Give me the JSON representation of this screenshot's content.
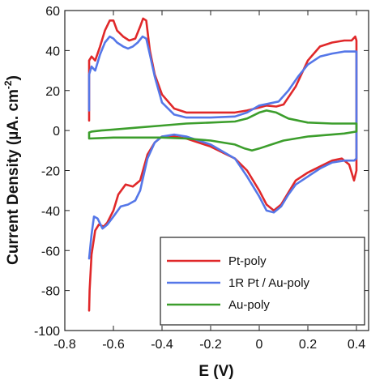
{
  "chart_data": {
    "type": "line",
    "xlabel": "E (V)",
    "ylabel_main": "Current Density (µA. cm",
    "ylabel_sup": "-2",
    "ylabel_tail": ")",
    "xlim": [
      -0.8,
      0.45
    ],
    "ylim": [
      -100,
      60
    ],
    "x_ticks": [
      -0.8,
      -0.6,
      -0.4,
      -0.2,
      0,
      0.2,
      0.4
    ],
    "x_tick_labels": [
      "-0.8",
      "-0.6",
      "-0.4",
      "-0.2",
      "0",
      "0.2",
      "0.4"
    ],
    "y_ticks": [
      -100,
      -80,
      -60,
      -40,
      -20,
      0,
      20,
      40,
      60
    ],
    "y_tick_labels": [
      "-100",
      "-80",
      "-60",
      "-40",
      "-20",
      "0",
      "20",
      "40",
      "60"
    ],
    "grid": false,
    "legend_position": "bottom-right",
    "series": [
      {
        "name": "Pt-poly",
        "color": "#e0282a",
        "points": [
          [
            -0.7,
            5
          ],
          [
            -0.7,
            35
          ],
          [
            -0.69,
            37
          ],
          [
            -0.675,
            35
          ],
          [
            -0.655,
            42
          ],
          [
            -0.635,
            50
          ],
          [
            -0.615,
            55
          ],
          [
            -0.6,
            55
          ],
          [
            -0.585,
            50
          ],
          [
            -0.56,
            47
          ],
          [
            -0.535,
            45
          ],
          [
            -0.51,
            46
          ],
          [
            -0.49,
            52
          ],
          [
            -0.478,
            56
          ],
          [
            -0.465,
            55
          ],
          [
            -0.45,
            40
          ],
          [
            -0.43,
            28
          ],
          [
            -0.4,
            18
          ],
          [
            -0.35,
            11
          ],
          [
            -0.3,
            9
          ],
          [
            -0.2,
            9
          ],
          [
            -0.1,
            9
          ],
          [
            -0.05,
            10
          ],
          [
            0.0,
            11.5
          ],
          [
            0.03,
            12.5
          ],
          [
            0.07,
            12
          ],
          [
            0.1,
            13
          ],
          [
            0.15,
            22
          ],
          [
            0.2,
            35
          ],
          [
            0.25,
            42
          ],
          [
            0.3,
            44
          ],
          [
            0.35,
            45
          ],
          [
            0.38,
            45
          ],
          [
            0.395,
            47
          ],
          [
            0.4,
            45
          ],
          [
            0.4,
            -20
          ],
          [
            0.39,
            -25
          ],
          [
            0.37,
            -17
          ],
          [
            0.34,
            -14
          ],
          [
            0.3,
            -15
          ],
          [
            0.25,
            -18
          ],
          [
            0.2,
            -21
          ],
          [
            0.15,
            -25
          ],
          [
            0.12,
            -31
          ],
          [
            0.09,
            -37
          ],
          [
            0.06,
            -40
          ],
          [
            0.03,
            -37
          ],
          [
            0.0,
            -30
          ],
          [
            -0.05,
            -20
          ],
          [
            -0.1,
            -14
          ],
          [
            -0.2,
            -8
          ],
          [
            -0.3,
            -4
          ],
          [
            -0.35,
            -3
          ],
          [
            -0.4,
            -3
          ],
          [
            -0.43,
            -6
          ],
          [
            -0.46,
            -12
          ],
          [
            -0.49,
            -25
          ],
          [
            -0.52,
            -28
          ],
          [
            -0.55,
            -27
          ],
          [
            -0.58,
            -32
          ],
          [
            -0.6,
            -40
          ],
          [
            -0.625,
            -46
          ],
          [
            -0.64,
            -48
          ],
          [
            -0.66,
            -47
          ],
          [
            -0.675,
            -50
          ],
          [
            -0.69,
            -62
          ],
          [
            -0.698,
            -80
          ],
          [
            -0.7,
            -90
          ]
        ]
      },
      {
        "name": "1R Pt / Au-poly",
        "color": "#5577e8",
        "points": [
          [
            -0.7,
            10
          ],
          [
            -0.7,
            28
          ],
          [
            -0.69,
            32
          ],
          [
            -0.675,
            30
          ],
          [
            -0.655,
            38
          ],
          [
            -0.635,
            44
          ],
          [
            -0.615,
            47
          ],
          [
            -0.6,
            46
          ],
          [
            -0.585,
            44
          ],
          [
            -0.56,
            42
          ],
          [
            -0.54,
            41
          ],
          [
            -0.52,
            42
          ],
          [
            -0.5,
            44
          ],
          [
            -0.48,
            47
          ],
          [
            -0.465,
            46
          ],
          [
            -0.45,
            38
          ],
          [
            -0.43,
            27
          ],
          [
            -0.4,
            14
          ],
          [
            -0.35,
            8
          ],
          [
            -0.3,
            6.5
          ],
          [
            -0.2,
            6.5
          ],
          [
            -0.1,
            7
          ],
          [
            -0.05,
            9
          ],
          [
            0.0,
            12.5
          ],
          [
            0.04,
            13.5
          ],
          [
            0.08,
            14.5
          ],
          [
            0.12,
            20
          ],
          [
            0.16,
            27
          ],
          [
            0.2,
            33
          ],
          [
            0.25,
            37
          ],
          [
            0.3,
            38.5
          ],
          [
            0.35,
            39.5
          ],
          [
            0.4,
            39.5
          ],
          [
            0.4,
            -14
          ],
          [
            0.39,
            -15
          ],
          [
            0.35,
            -15
          ],
          [
            0.3,
            -16
          ],
          [
            0.25,
            -19
          ],
          [
            0.2,
            -23
          ],
          [
            0.15,
            -27
          ],
          [
            0.12,
            -32
          ],
          [
            0.09,
            -38
          ],
          [
            0.06,
            -41
          ],
          [
            0.03,
            -40
          ],
          [
            0.0,
            -33
          ],
          [
            -0.05,
            -23
          ],
          [
            -0.1,
            -14
          ],
          [
            -0.2,
            -7
          ],
          [
            -0.3,
            -3
          ],
          [
            -0.35,
            -2
          ],
          [
            -0.4,
            -3
          ],
          [
            -0.43,
            -6
          ],
          [
            -0.46,
            -14
          ],
          [
            -0.49,
            -30
          ],
          [
            -0.51,
            -35
          ],
          [
            -0.54,
            -37
          ],
          [
            -0.57,
            -38
          ],
          [
            -0.6,
            -43
          ],
          [
            -0.625,
            -47
          ],
          [
            -0.645,
            -49
          ],
          [
            -0.665,
            -44
          ],
          [
            -0.68,
            -43
          ],
          [
            -0.69,
            -52
          ],
          [
            -0.7,
            -64
          ]
        ]
      },
      {
        "name": "Au-poly",
        "color": "#3c9e2c",
        "points": [
          [
            -0.7,
            -1
          ],
          [
            -0.69,
            -0.5
          ],
          [
            -0.65,
            0
          ],
          [
            -0.6,
            0.5
          ],
          [
            -0.5,
            1.5
          ],
          [
            -0.4,
            2.5
          ],
          [
            -0.3,
            3.5
          ],
          [
            -0.2,
            4
          ],
          [
            -0.1,
            4.5
          ],
          [
            -0.05,
            6
          ],
          [
            0.0,
            9
          ],
          [
            0.03,
            10
          ],
          [
            0.07,
            9
          ],
          [
            0.12,
            6
          ],
          [
            0.2,
            4
          ],
          [
            0.3,
            3.5
          ],
          [
            0.4,
            3.5
          ],
          [
            0.4,
            -0.5
          ],
          [
            0.35,
            -1.5
          ],
          [
            0.3,
            -2
          ],
          [
            0.2,
            -3
          ],
          [
            0.1,
            -5
          ],
          [
            0.05,
            -7
          ],
          [
            0.0,
            -9
          ],
          [
            -0.03,
            -10
          ],
          [
            -0.06,
            -9
          ],
          [
            -0.1,
            -7
          ],
          [
            -0.2,
            -5
          ],
          [
            -0.3,
            -4
          ],
          [
            -0.4,
            -3.5
          ],
          [
            -0.5,
            -3.5
          ],
          [
            -0.6,
            -3.5
          ],
          [
            -0.7,
            -4
          ],
          [
            -0.7,
            -1
          ]
        ]
      }
    ]
  }
}
